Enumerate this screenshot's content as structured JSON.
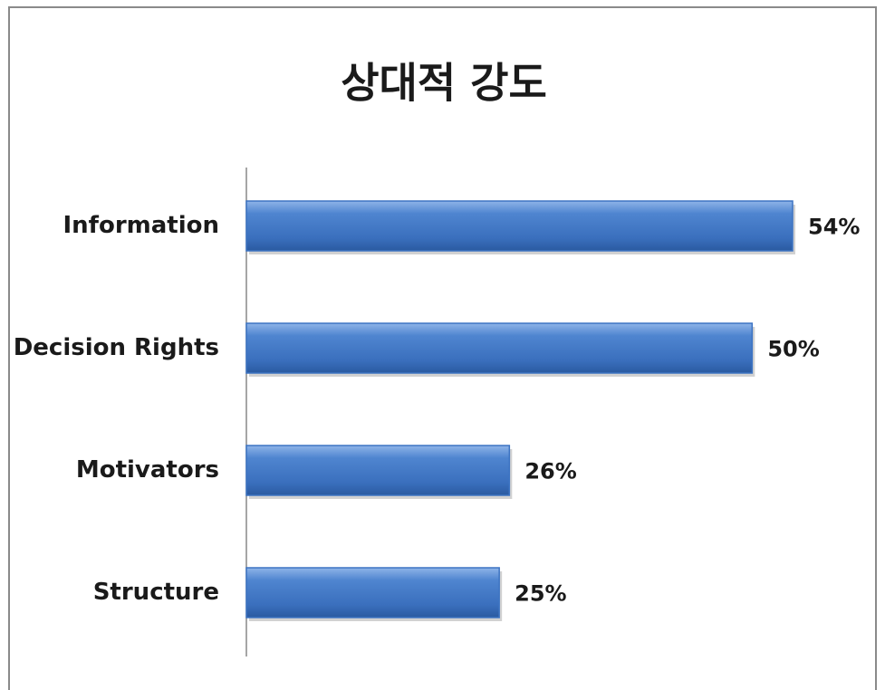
{
  "chart_data": {
    "type": "bar",
    "orientation": "horizontal",
    "title": "상대적 강도",
    "categories": [
      "Information",
      "Decision Rights",
      "Motivators",
      "Structure"
    ],
    "values": [
      54,
      50,
      26,
      25
    ],
    "value_labels": [
      "54%",
      "50%",
      "26%",
      "25%"
    ],
    "color": "#3d74c3"
  }
}
